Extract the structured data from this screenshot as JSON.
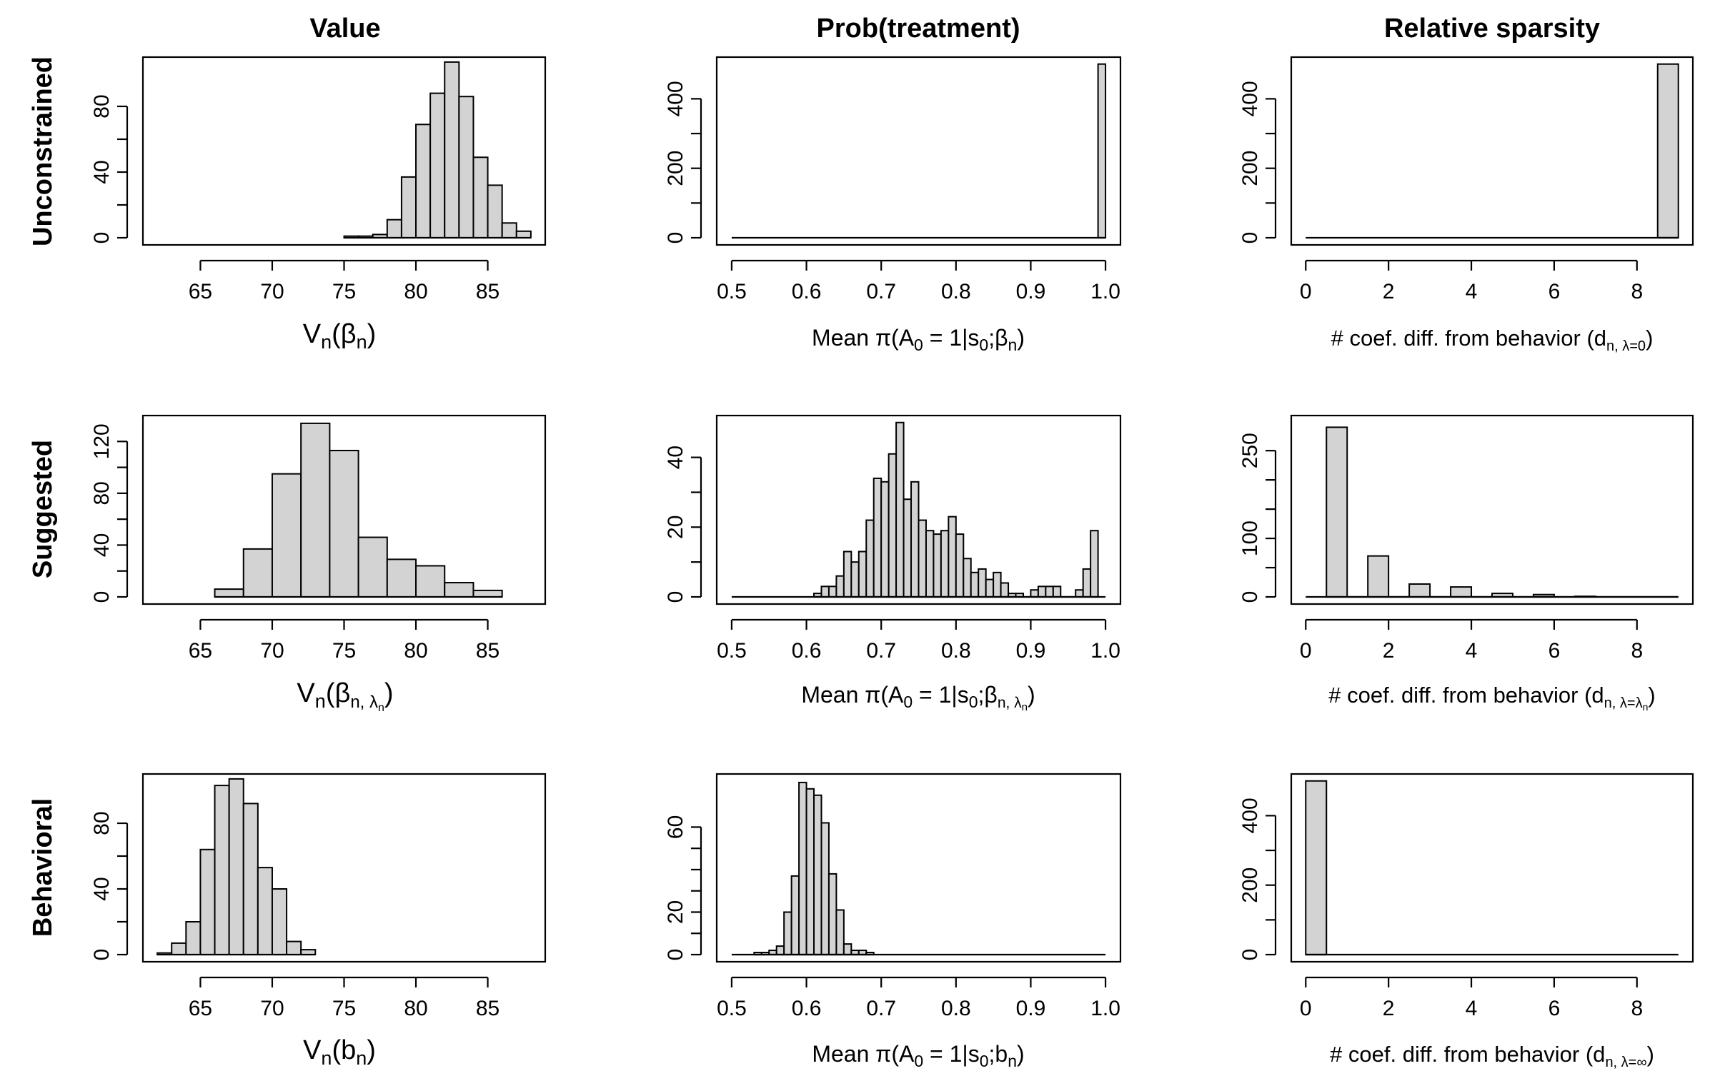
{
  "column_titles": [
    "Value",
    "Prob(treatment)",
    "Relative sparsity"
  ],
  "row_titles": [
    "Unconstrained",
    "Suggested",
    "Behavioral"
  ],
  "colors": {
    "bar_fill": "#d3d3d3",
    "bar_stroke": "#000000",
    "background": "#ffffff"
  },
  "chart_data": [
    {
      "type": "bar",
      "panel": "Unconstrained / Value",
      "xlabel": "Vn(βn)",
      "xlim": [
        61,
        89
      ],
      "ylim": [
        0,
        110
      ],
      "xticks": [
        65,
        70,
        75,
        80,
        85
      ],
      "xtick_labels": [
        "65",
        "70",
        "75",
        "80",
        "85"
      ],
      "yticks": [
        0,
        40,
        80
      ],
      "ytick_labels": [
        "0",
        "40",
        "80"
      ],
      "bins": [
        [
          75,
          76,
          1
        ],
        [
          76,
          77,
          1
        ],
        [
          77,
          78,
          2
        ],
        [
          78,
          79,
          11
        ],
        [
          79,
          80,
          37
        ],
        [
          80,
          81,
          69
        ],
        [
          81,
          82,
          88
        ],
        [
          82,
          83,
          107
        ],
        [
          83,
          84,
          86
        ],
        [
          84,
          85,
          49
        ],
        [
          85,
          86,
          32
        ],
        [
          86,
          87,
          9
        ],
        [
          87,
          88,
          4
        ]
      ]
    },
    {
      "type": "bar",
      "panel": "Unconstrained / Prob(treatment)",
      "xlabel": "Mean π(A0 = 1|s0;βn)",
      "xlim": [
        0.48,
        1.02
      ],
      "ylim": [
        0,
        520
      ],
      "xticks": [
        0.5,
        0.6,
        0.7,
        0.8,
        0.9,
        1.0
      ],
      "xtick_labels": [
        "0.5",
        "0.6",
        "0.7",
        "0.8",
        "0.9",
        "1.0"
      ],
      "yticks": [
        0,
        200,
        400
      ],
      "ytick_labels": [
        "0",
        "200",
        "400"
      ],
      "bins": [
        [
          0.99,
          1.0,
          500
        ]
      ]
    },
    {
      "type": "bar",
      "panel": "Unconstrained / Relative sparsity",
      "xlabel": "# coef. diff. from behavior (dn, λ=0)",
      "xlim": [
        -0.35,
        9.35
      ],
      "ylim": [
        0,
        520
      ],
      "xticks": [
        0,
        2,
        4,
        6,
        8
      ],
      "xtick_labels": [
        "0",
        "2",
        "4",
        "6",
        "8"
      ],
      "yticks": [
        0,
        200,
        400
      ],
      "ytick_labels": [
        "0",
        "200",
        "400"
      ],
      "bins": [
        [
          8.5,
          9,
          500
        ]
      ]
    },
    {
      "type": "bar",
      "panel": "Suggested / Value",
      "xlabel": "Vn(βn, λn)",
      "xlim": [
        61,
        89
      ],
      "ylim": [
        0,
        140
      ],
      "xticks": [
        65,
        70,
        75,
        80,
        85
      ],
      "xtick_labels": [
        "65",
        "70",
        "75",
        "80",
        "85"
      ],
      "yticks": [
        0,
        40,
        80,
        120
      ],
      "ytick_labels": [
        "0",
        "40",
        "80",
        "120"
      ],
      "bins": [
        [
          66,
          68,
          6
        ],
        [
          68,
          70,
          37
        ],
        [
          70,
          72,
          95
        ],
        [
          72,
          74,
          134
        ],
        [
          74,
          76,
          113
        ],
        [
          76,
          78,
          46
        ],
        [
          78,
          80,
          29
        ],
        [
          80,
          82,
          24
        ],
        [
          82,
          84,
          11
        ],
        [
          84,
          86,
          5
        ]
      ]
    },
    {
      "type": "bar",
      "panel": "Suggested / Prob(treatment)",
      "xlabel": "Mean π(A0 = 1|s0;βn, λn)",
      "xlim": [
        0.48,
        1.02
      ],
      "ylim": [
        0,
        52
      ],
      "xticks": [
        0.5,
        0.6,
        0.7,
        0.8,
        0.9,
        1.0
      ],
      "xtick_labels": [
        "0.5",
        "0.6",
        "0.7",
        "0.8",
        "0.9",
        "1.0"
      ],
      "yticks": [
        0,
        20,
        40
      ],
      "ytick_labels": [
        "0",
        "20",
        "40"
      ],
      "bins": [
        [
          0.61,
          0.62,
          1
        ],
        [
          0.62,
          0.63,
          3
        ],
        [
          0.63,
          0.64,
          3
        ],
        [
          0.64,
          0.65,
          6
        ],
        [
          0.65,
          0.66,
          13
        ],
        [
          0.66,
          0.67,
          10
        ],
        [
          0.67,
          0.68,
          13
        ],
        [
          0.68,
          0.69,
          22
        ],
        [
          0.69,
          0.7,
          34
        ],
        [
          0.7,
          0.71,
          33
        ],
        [
          0.71,
          0.72,
          41
        ],
        [
          0.72,
          0.73,
          50
        ],
        [
          0.73,
          0.74,
          28
        ],
        [
          0.74,
          0.75,
          33
        ],
        [
          0.75,
          0.76,
          22
        ],
        [
          0.76,
          0.77,
          19
        ],
        [
          0.77,
          0.78,
          18
        ],
        [
          0.78,
          0.79,
          19
        ],
        [
          0.79,
          0.8,
          23
        ],
        [
          0.8,
          0.81,
          18
        ],
        [
          0.81,
          0.82,
          11
        ],
        [
          0.82,
          0.83,
          7
        ],
        [
          0.83,
          0.84,
          8
        ],
        [
          0.84,
          0.85,
          5
        ],
        [
          0.85,
          0.86,
          7
        ],
        [
          0.86,
          0.87,
          4
        ],
        [
          0.87,
          0.88,
          1
        ],
        [
          0.88,
          0.89,
          1
        ],
        [
          0.89,
          0.9,
          0
        ],
        [
          0.9,
          0.91,
          2
        ],
        [
          0.91,
          0.92,
          3
        ],
        [
          0.92,
          0.93,
          3
        ],
        [
          0.93,
          0.94,
          3
        ],
        [
          0.96,
          0.97,
          2
        ],
        [
          0.97,
          0.98,
          8
        ],
        [
          0.98,
          0.99,
          19
        ]
      ]
    },
    {
      "type": "bar",
      "panel": "Suggested / Relative sparsity",
      "xlabel": "# coef. diff. from behavior (dn, λ=λn)",
      "xlim": [
        -0.35,
        9.35
      ],
      "ylim": [
        0,
        310
      ],
      "xticks": [
        0,
        2,
        4,
        6,
        8
      ],
      "xtick_labels": [
        "0",
        "2",
        "4",
        "6",
        "8"
      ],
      "yticks": [
        0,
        100,
        250
      ],
      "ytick_labels": [
        "0",
        "100",
        "250"
      ],
      "bins": [
        [
          0.5,
          1,
          290
        ],
        [
          1.5,
          2,
          70
        ],
        [
          2.5,
          3,
          22
        ],
        [
          3.5,
          4,
          17
        ],
        [
          4.5,
          5,
          6
        ],
        [
          5.5,
          6,
          4
        ],
        [
          6.5,
          7,
          1
        ],
        [
          7.5,
          8,
          0
        ],
        [
          8.5,
          9,
          0
        ]
      ]
    },
    {
      "type": "bar",
      "panel": "Behavioral / Value",
      "xlabel": "Vn(bn)",
      "xlim": [
        61,
        89
      ],
      "ylim": [
        0,
        110
      ],
      "xticks": [
        65,
        70,
        75,
        80,
        85
      ],
      "xtick_labels": [
        "65",
        "70",
        "75",
        "80",
        "85"
      ],
      "yticks": [
        0,
        40,
        80
      ],
      "ytick_labels": [
        "0",
        "40",
        "80"
      ],
      "bins": [
        [
          62,
          63,
          1
        ],
        [
          63,
          64,
          7
        ],
        [
          64,
          65,
          20
        ],
        [
          65,
          66,
          64
        ],
        [
          66,
          67,
          103
        ],
        [
          67,
          68,
          107
        ],
        [
          68,
          69,
          92
        ],
        [
          69,
          70,
          53
        ],
        [
          70,
          71,
          40
        ],
        [
          71,
          72,
          8
        ],
        [
          72,
          73,
          3
        ]
      ]
    },
    {
      "type": "bar",
      "panel": "Behavioral / Prob(treatment)",
      "xlabel": "Mean π(A0 = 1|s0;bn)",
      "xlim": [
        0.48,
        1.02
      ],
      "ylim": [
        0,
        85
      ],
      "xticks": [
        0.5,
        0.6,
        0.7,
        0.8,
        0.9,
        1.0
      ],
      "xtick_labels": [
        "0.5",
        "0.6",
        "0.7",
        "0.8",
        "0.9",
        "1.0"
      ],
      "yticks": [
        0,
        20,
        60
      ],
      "ytick_labels": [
        "0",
        "20",
        "60"
      ],
      "bins": [
        [
          0.53,
          0.54,
          1
        ],
        [
          0.54,
          0.55,
          1
        ],
        [
          0.55,
          0.56,
          2
        ],
        [
          0.56,
          0.57,
          4
        ],
        [
          0.57,
          0.58,
          20
        ],
        [
          0.58,
          0.59,
          37
        ],
        [
          0.59,
          0.6,
          81
        ],
        [
          0.6,
          0.61,
          78
        ],
        [
          0.61,
          0.62,
          75
        ],
        [
          0.62,
          0.63,
          62
        ],
        [
          0.63,
          0.64,
          38
        ],
        [
          0.64,
          0.65,
          21
        ],
        [
          0.65,
          0.66,
          5
        ],
        [
          0.66,
          0.67,
          2
        ],
        [
          0.67,
          0.68,
          2
        ],
        [
          0.68,
          0.69,
          1
        ]
      ]
    },
    {
      "type": "bar",
      "panel": "Behavioral / Relative sparsity",
      "xlabel": "# coef. diff. from behavior (dn, λ=∞)",
      "xlim": [
        -0.35,
        9.35
      ],
      "ylim": [
        0,
        520
      ],
      "xticks": [
        0,
        2,
        4,
        6,
        8
      ],
      "xtick_labels": [
        "0",
        "2",
        "4",
        "6",
        "8"
      ],
      "yticks": [
        0,
        200,
        400
      ],
      "ytick_labels": [
        "0",
        "200",
        "400"
      ],
      "bins": [
        [
          0,
          0.5,
          500
        ]
      ]
    }
  ]
}
